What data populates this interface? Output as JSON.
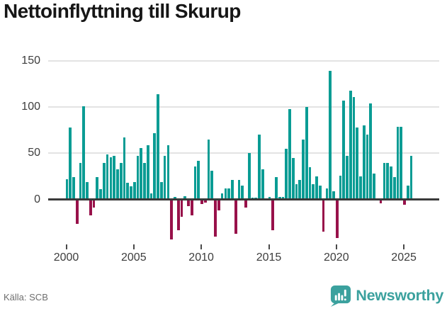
{
  "title": "Nettoinflyttning till Skurup",
  "source": "Källa: SCB",
  "branding": {
    "name": "Newsworthy"
  },
  "colors": {
    "positive": "#0a9c94",
    "negative": "#98114a",
    "grid": "#e3e3e3",
    "zero_line": "#3a3a3a",
    "axis_text": "#3d3d3d",
    "title_text": "#161616",
    "source_text": "#6e6e6e",
    "brand_teal": "#3ba19e"
  },
  "chart_data": {
    "type": "bar",
    "title": "Nettoinflyttning till Skurup",
    "xlabel": "",
    "ylabel": "",
    "frequency": "quarterly",
    "start_year": 2000,
    "start_quarter": 1,
    "values": [
      22,
      78,
      24,
      -26,
      40,
      101,
      19,
      -17,
      -9,
      24,
      11,
      40,
      49,
      46,
      47,
      33,
      40,
      67,
      18,
      14,
      19,
      47,
      56,
      40,
      59,
      7,
      72,
      114,
      19,
      47,
      59,
      -43,
      3,
      -33,
      -19,
      4,
      -7,
      -17,
      36,
      42,
      -5,
      -3,
      65,
      31,
      -40,
      -12,
      7,
      12,
      12,
      21,
      -37,
      21,
      15,
      -9,
      50,
      2,
      2,
      70,
      33,
      0,
      3,
      -33,
      24,
      3,
      3,
      55,
      98,
      45,
      17,
      21,
      65,
      100,
      35,
      17,
      25,
      15,
      -35,
      12,
      139,
      9,
      -42,
      26,
      107,
      47,
      118,
      111,
      78,
      25,
      80,
      70,
      104,
      28,
      0,
      -4,
      40,
      40,
      36,
      24,
      79,
      79,
      -6,
      15,
      47
    ],
    "y_ticks": [
      0,
      50,
      100,
      150
    ],
    "x_ticks": [
      2000,
      2005,
      2010,
      2015,
      2020,
      2025
    ],
    "ylim": [
      -50,
      155
    ],
    "grid": true,
    "legend": "none"
  }
}
